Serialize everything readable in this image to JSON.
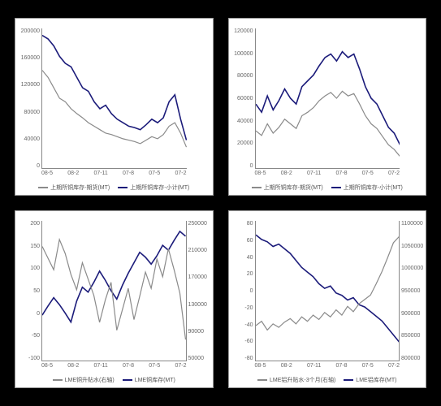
{
  "background_color": "#000000",
  "panel_bg": "#ffffff",
  "panel_border": "#999999",
  "axis_color": "#888888",
  "tick_font_size": 7,
  "tick_color": "#666666",
  "x_ticks": [
    "08-5",
    "08-2",
    "07-11",
    "07-8",
    "07-5",
    "07-2"
  ],
  "colors": {
    "navy": "#1b1b7a",
    "gray": "#8a8a8a"
  },
  "charts": {
    "tl": {
      "y_left": {
        "min": 0,
        "max": 200000,
        "ticks": [
          "200000",
          "160000",
          "120000",
          "80000",
          "40000",
          "0"
        ]
      },
      "series": [
        {
          "name": "navy",
          "color": "#1b1b7a",
          "width": 1.6,
          "axis": "left",
          "points": [
            190000,
            185000,
            175000,
            160000,
            150000,
            145000,
            130000,
            115000,
            110000,
            95000,
            85000,
            90000,
            78000,
            70000,
            65000,
            60000,
            58000,
            55000,
            62000,
            70000,
            65000,
            72000,
            95000,
            105000,
            70000,
            40000
          ]
        },
        {
          "name": "gray",
          "color": "#8a8a8a",
          "width": 1.2,
          "axis": "left",
          "points": [
            140000,
            130000,
            115000,
            100000,
            95000,
            85000,
            78000,
            72000,
            65000,
            60000,
            55000,
            50000,
            48000,
            45000,
            42000,
            40000,
            38000,
            35000,
            40000,
            45000,
            42000,
            48000,
            60000,
            65000,
            50000,
            30000
          ]
        }
      ],
      "legend": [
        "上期所铜库存-期货(MT)",
        "上期所铜库存-小计(MT)"
      ]
    },
    "tr": {
      "y_left": {
        "min": 0,
        "max": 120000,
        "ticks": [
          "120000",
          "100000",
          "80000",
          "60000",
          "40000",
          "20000",
          "0"
        ]
      },
      "series": [
        {
          "name": "navy",
          "color": "#1b1b7a",
          "width": 1.6,
          "axis": "left",
          "points": [
            55000,
            48000,
            62000,
            50000,
            58000,
            68000,
            60000,
            55000,
            70000,
            75000,
            80000,
            88000,
            95000,
            98000,
            92000,
            100000,
            95000,
            98000,
            85000,
            70000,
            60000,
            55000,
            45000,
            35000,
            30000,
            20000
          ]
        },
        {
          "name": "gray",
          "color": "#8a8a8a",
          "width": 1.2,
          "axis": "left",
          "points": [
            32000,
            28000,
            38000,
            30000,
            35000,
            42000,
            38000,
            34000,
            45000,
            48000,
            52000,
            58000,
            62000,
            65000,
            60000,
            66000,
            62000,
            64000,
            55000,
            45000,
            38000,
            34000,
            27000,
            20000,
            16000,
            10000
          ]
        }
      ],
      "legend": [
        "上期所铜库存-期货(MT)",
        "上期所铜库存-小计(MT)"
      ]
    },
    "bl": {
      "y_left": {
        "min": -100,
        "max": 200,
        "ticks": [
          "200",
          "150",
          "100",
          "50",
          "0",
          "-50",
          "-100"
        ]
      },
      "y_right": {
        "min": 50000,
        "max": 250000,
        "ticks": [
          "250000",
          "210000",
          "170000",
          "130000",
          "90000",
          "50000"
        ]
      },
      "series": [
        {
          "name": "navy",
          "color": "#1b1b7a",
          "width": 1.6,
          "axis": "right",
          "points": [
            115000,
            128000,
            140000,
            130000,
            118000,
            105000,
            135000,
            155000,
            148000,
            162000,
            178000,
            165000,
            150000,
            138000,
            158000,
            175000,
            190000,
            205000,
            198000,
            188000,
            200000,
            215000,
            208000,
            222000,
            235000,
            228000
          ]
        },
        {
          "name": "gray",
          "color": "#8a8a8a",
          "width": 1.2,
          "axis": "left",
          "points": [
            145,
            120,
            95,
            160,
            130,
            85,
            52,
            110,
            75,
            40,
            -18,
            30,
            68,
            -35,
            10,
            55,
            -12,
            38,
            90,
            55,
            118,
            80,
            140,
            95,
            45,
            -55
          ]
        }
      ],
      "legend": [
        "LME铜升贴水(右轴)",
        "LME铜库存(MT)"
      ]
    },
    "br": {
      "y_left": {
        "min": -80,
        "max": 80,
        "ticks": [
          "80",
          "60",
          "40",
          "20",
          "0",
          "-20",
          "-40",
          "-60",
          "-80"
        ]
      },
      "y_right": {
        "min": 800000,
        "max": 1100000,
        "ticks": [
          "1100000",
          "1050000",
          "1000000",
          "950000",
          "900000",
          "850000",
          "800000"
        ]
      },
      "series": [
        {
          "name": "navy",
          "color": "#1b1b7a",
          "width": 1.6,
          "axis": "right",
          "points": [
            1070000,
            1060000,
            1055000,
            1045000,
            1050000,
            1040000,
            1030000,
            1015000,
            1000000,
            990000,
            980000,
            965000,
            955000,
            960000,
            945000,
            940000,
            930000,
            935000,
            920000,
            915000,
            905000,
            895000,
            885000,
            870000,
            855000,
            840000
          ]
        },
        {
          "name": "gray",
          "color": "#8a8a8a",
          "width": 1.2,
          "axis": "left",
          "points": [
            -40,
            -35,
            -45,
            -38,
            -42,
            -36,
            -32,
            -38,
            -30,
            -35,
            -28,
            -33,
            -25,
            -30,
            -22,
            -28,
            -18,
            -24,
            -15,
            -10,
            -5,
            8,
            22,
            38,
            55,
            62
          ]
        }
      ],
      "legend": [
        "LME铝升贴水-3个月(右轴)",
        "LME铝库存(MT)"
      ]
    }
  }
}
